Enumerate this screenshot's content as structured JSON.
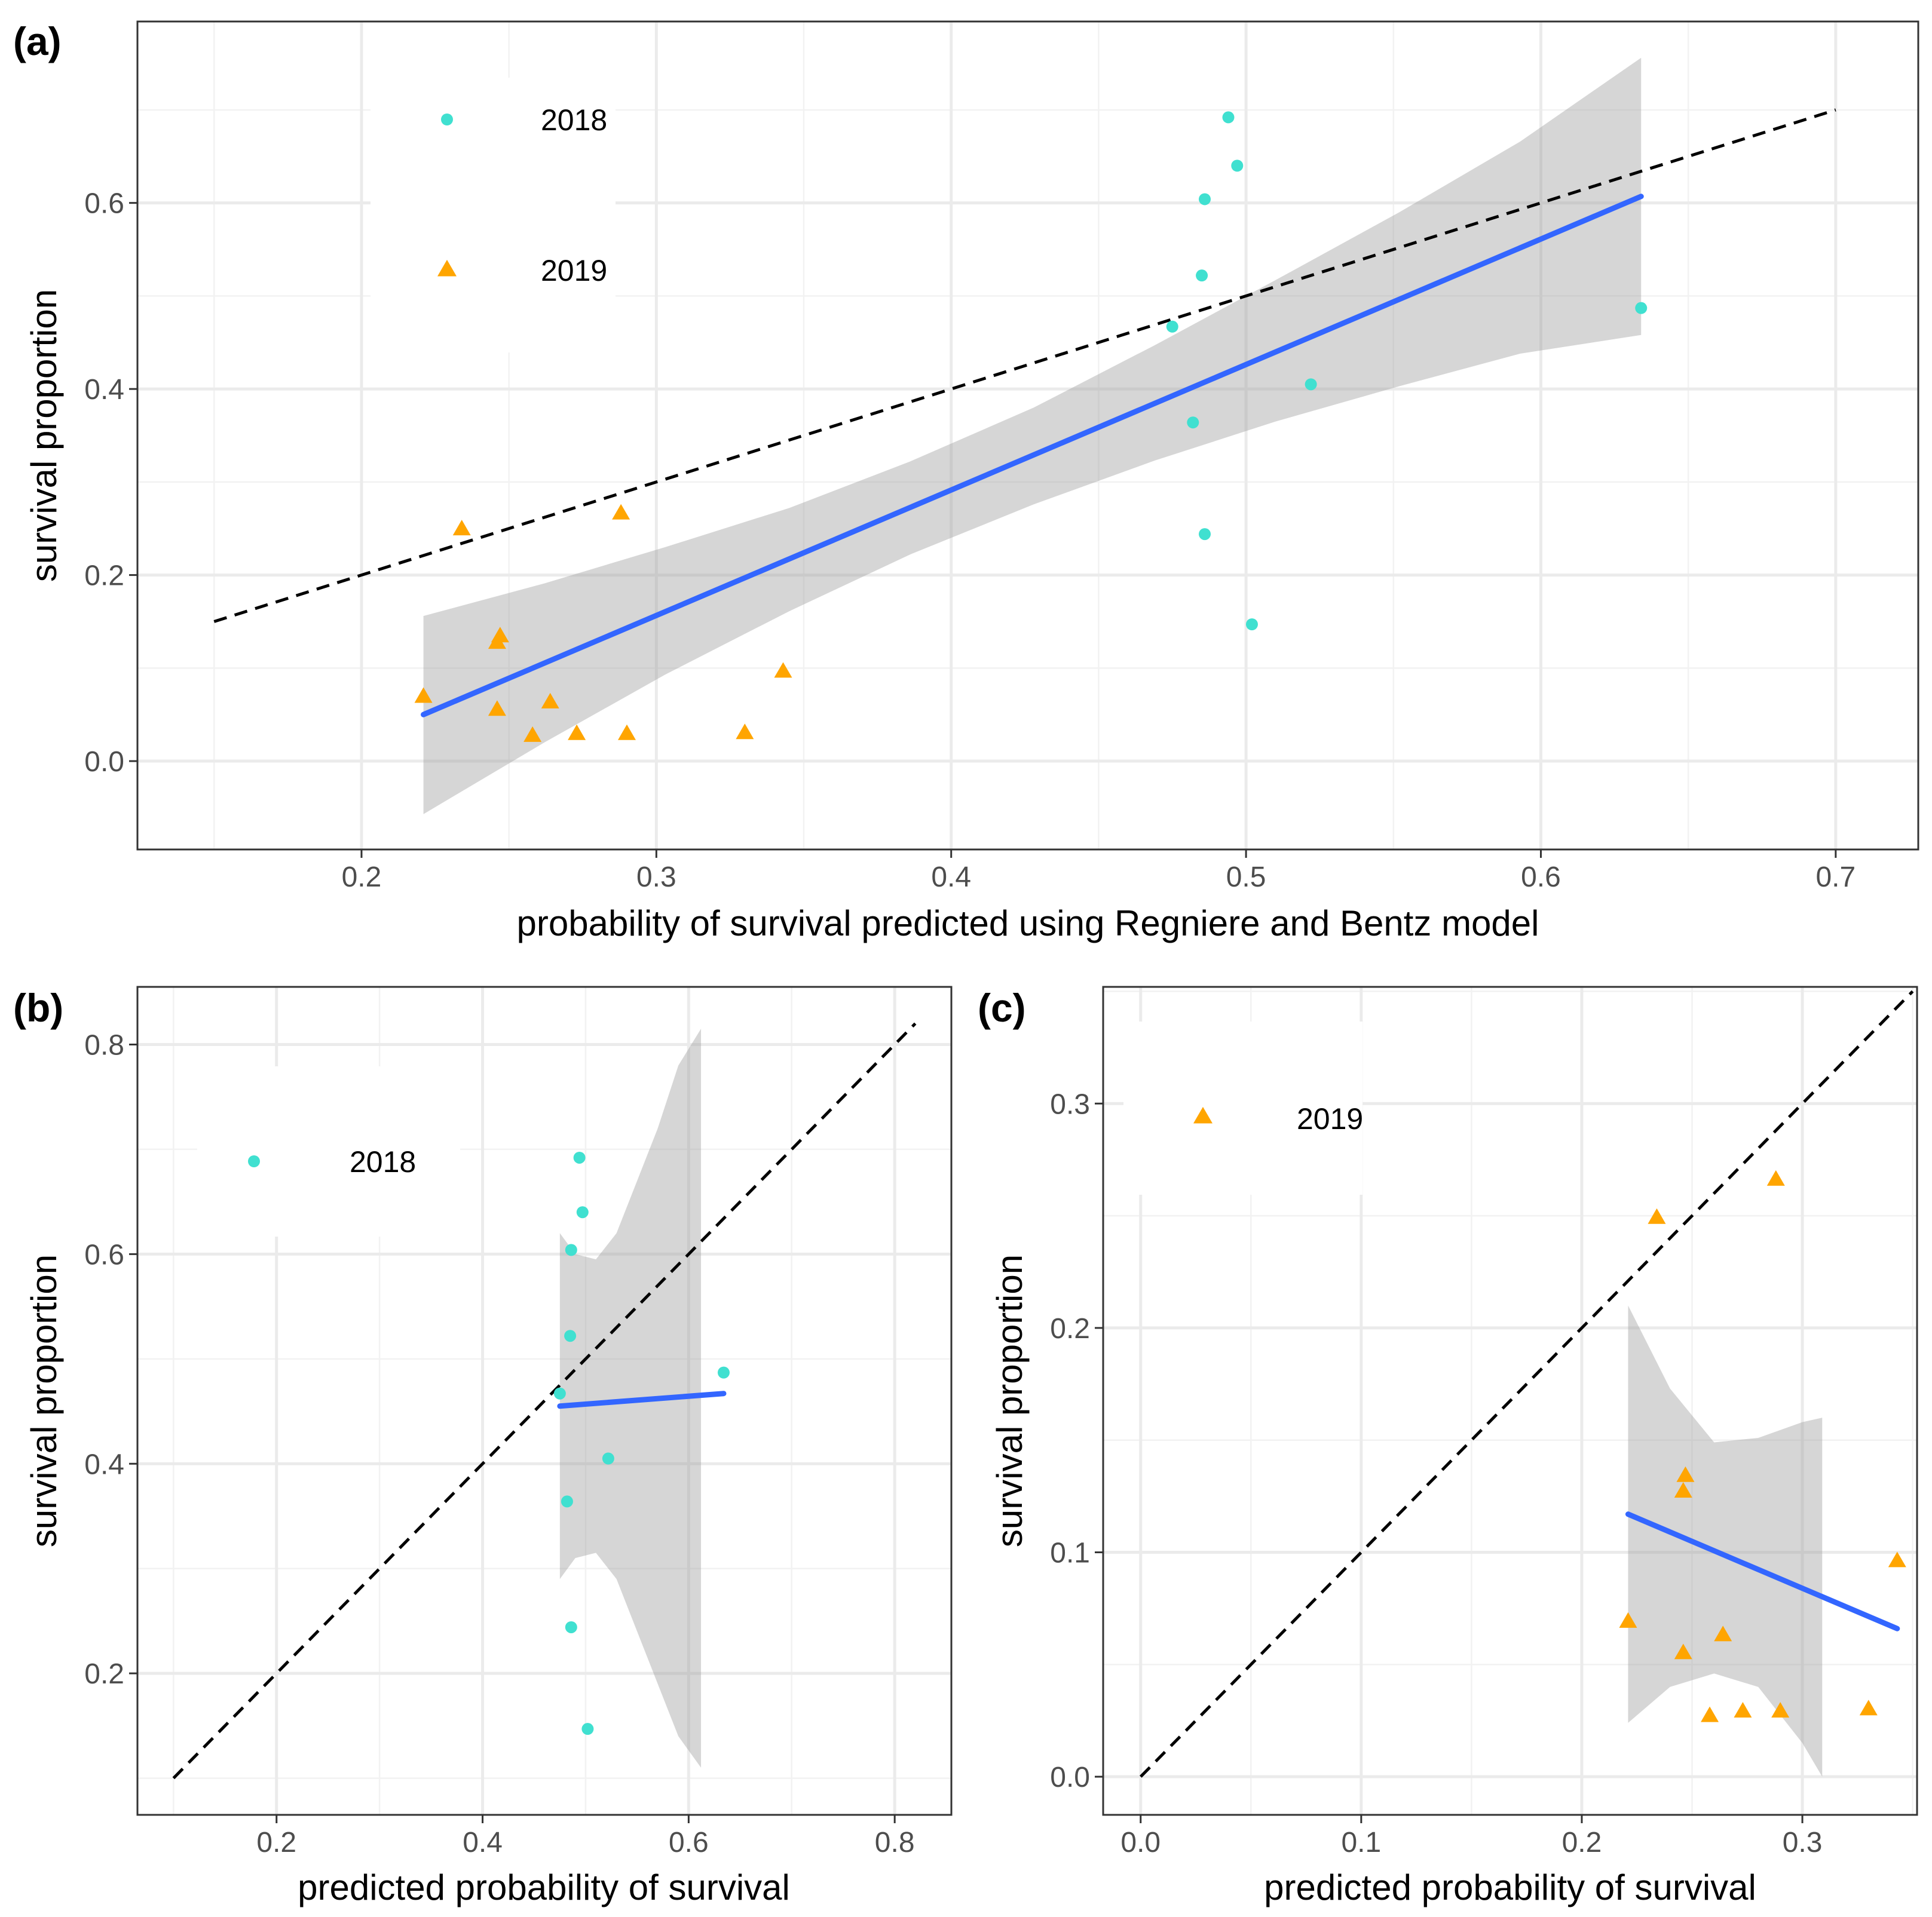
{
  "colors": {
    "y2018": "#40E0D0",
    "y2019": "#FFA500",
    "fit": "#3366FF",
    "band": "#999999"
  },
  "chart_data": [
    {
      "panel": "(a)",
      "type": "scatter",
      "xlabel": "probability of survival predicted using Regniere and Bentz model",
      "ylabel": "survival proportion",
      "xlim": [
        0.124,
        0.728
      ],
      "ylim": [
        -0.095,
        0.795
      ],
      "xticks": [
        0.2,
        0.3,
        0.4,
        0.5,
        0.6,
        0.7
      ],
      "xtick_labels": [
        "0.2",
        "0.3",
        "0.4",
        "0.5",
        "0.6",
        "0.7"
      ],
      "yticks": [
        0.0,
        0.2,
        0.4,
        0.6
      ],
      "ytick_labels": [
        "0.0",
        "0.2",
        "0.4",
        "0.6"
      ],
      "legend": [
        {
          "label": "2018",
          "shape": "circle",
          "color_key": "y2018"
        },
        {
          "label": "2019",
          "shape": "triangle",
          "color_key": "y2019"
        }
      ],
      "series": [
        {
          "name": "2018",
          "shape": "circle",
          "color_key": "y2018",
          "x": [
            0.494,
            0.497,
            0.486,
            0.485,
            0.475,
            0.634,
            0.522,
            0.482,
            0.486,
            0.502
          ],
          "y": [
            0.692,
            0.64,
            0.604,
            0.522,
            0.467,
            0.487,
            0.405,
            0.364,
            0.244,
            0.147
          ]
        },
        {
          "name": "2019",
          "shape": "triangle",
          "color_key": "y2019",
          "x": [
            0.234,
            0.288,
            0.247,
            0.246,
            0.221,
            0.246,
            0.264,
            0.258,
            0.273,
            0.29,
            0.33,
            0.343
          ],
          "y": [
            0.249,
            0.266,
            0.134,
            0.127,
            0.069,
            0.055,
            0.063,
            0.027,
            0.029,
            0.029,
            0.03,
            0.096
          ]
        }
      ],
      "identity_line": {
        "x": [
          0.15,
          0.7
        ],
        "y": [
          0.15,
          0.7
        ]
      },
      "fit": {
        "x": [
          0.221,
          0.634
        ],
        "y": [
          0.05,
          0.607
        ]
      },
      "band": {
        "x": [
          0.221,
          0.262,
          0.303,
          0.345,
          0.386,
          0.428,
          0.469,
          0.51,
          0.552,
          0.593,
          0.634
        ],
        "lower": [
          -0.057,
          0.02,
          0.093,
          0.161,
          0.222,
          0.276,
          0.323,
          0.365,
          0.403,
          0.438,
          0.458
        ],
        "upper": [
          0.156,
          0.191,
          0.23,
          0.272,
          0.322,
          0.38,
          0.447,
          0.517,
          0.59,
          0.666,
          0.756
        ]
      }
    },
    {
      "panel": "(b)",
      "type": "scatter",
      "xlabel": "predicted probability of survival",
      "ylabel": "survival proportion",
      "xlim": [
        0.065,
        0.855
      ],
      "ylim": [
        0.065,
        0.855
      ],
      "xticks": [
        0.2,
        0.4,
        0.6,
        0.8
      ],
      "xtick_labels": [
        "0.2",
        "0.4",
        "0.6",
        "0.8"
      ],
      "yticks": [
        0.2,
        0.4,
        0.6,
        0.8
      ],
      "ytick_labels": [
        "0.2",
        "0.4",
        "0.6",
        "0.8"
      ],
      "legend": [
        {
          "label": "2018",
          "shape": "circle",
          "color_key": "y2018"
        }
      ],
      "series": [
        {
          "name": "2018",
          "shape": "circle",
          "color_key": "y2018",
          "x": [
            0.494,
            0.497,
            0.486,
            0.485,
            0.475,
            0.634,
            0.522,
            0.482,
            0.486,
            0.502
          ],
          "y": [
            0.692,
            0.64,
            0.604,
            0.522,
            0.467,
            0.487,
            0.405,
            0.364,
            0.244,
            0.147
          ]
        }
      ],
      "identity_line": {
        "x": [
          0.1,
          0.82
        ],
        "y": [
          0.1,
          0.82
        ]
      },
      "fit": {
        "x": [
          0.475,
          0.634
        ],
        "y": [
          0.455,
          0.467
        ]
      },
      "band": {
        "x": [
          0.475,
          0.49,
          0.51,
          0.53,
          0.55,
          0.57,
          0.59,
          0.612
        ],
        "lower": [
          0.29,
          0.31,
          0.315,
          0.29,
          0.24,
          0.19,
          0.14,
          0.11
        ],
        "upper": [
          0.62,
          0.6,
          0.595,
          0.62,
          0.67,
          0.72,
          0.78,
          0.815
        ]
      }
    },
    {
      "panel": "(c)",
      "type": "scatter",
      "xlabel": "predicted probability of survival",
      "ylabel": "survival proportion",
      "xlim": [
        -0.017,
        0.352
      ],
      "ylim": [
        -0.017,
        0.352
      ],
      "xticks": [
        0.0,
        0.1,
        0.2,
        0.3
      ],
      "xtick_labels": [
        "0.0",
        "0.1",
        "0.2",
        "0.3"
      ],
      "yticks": [
        0.0,
        0.1,
        0.2,
        0.3
      ],
      "ytick_labels": [
        "0.0",
        "0.1",
        "0.2",
        "0.3"
      ],
      "legend": [
        {
          "label": "2019",
          "shape": "triangle",
          "color_key": "y2019"
        }
      ],
      "series": [
        {
          "name": "2019",
          "shape": "triangle",
          "color_key": "y2019",
          "x": [
            0.234,
            0.288,
            0.247,
            0.246,
            0.221,
            0.246,
            0.264,
            0.258,
            0.273,
            0.29,
            0.33,
            0.343
          ],
          "y": [
            0.249,
            0.266,
            0.134,
            0.127,
            0.069,
            0.055,
            0.063,
            0.027,
            0.029,
            0.029,
            0.03,
            0.096
          ]
        }
      ],
      "identity_line": {
        "x": [
          0.0,
          0.35
        ],
        "y": [
          0.0,
          0.35
        ]
      },
      "fit": {
        "x": [
          0.221,
          0.343
        ],
        "y": [
          0.117,
          0.066
        ]
      },
      "band": {
        "x": [
          0.221,
          0.24,
          0.26,
          0.28,
          0.3,
          0.309
        ],
        "lower": [
          0.024,
          0.04,
          0.046,
          0.04,
          0.015,
          0.0
        ],
        "upper": [
          0.21,
          0.173,
          0.149,
          0.151,
          0.158,
          0.16
        ]
      }
    }
  ]
}
